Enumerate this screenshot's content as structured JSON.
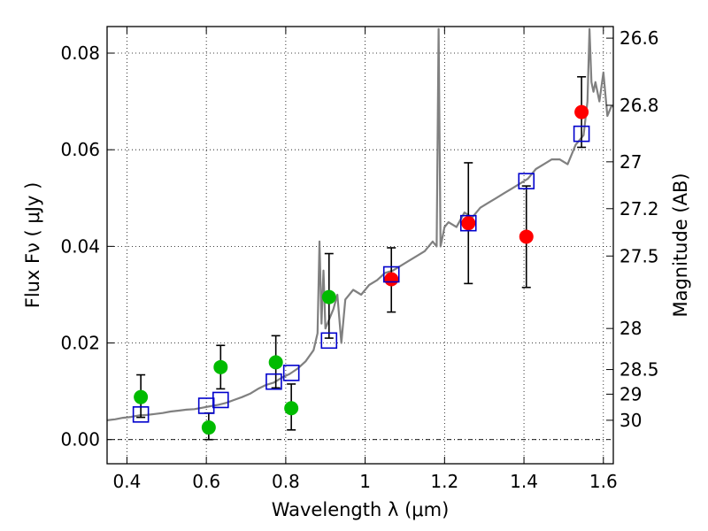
{
  "chart_data": {
    "type": "scatter",
    "xlabel": "Wavelength  λ (μm)",
    "ylabel": "Flux  Fν  ( μJy )",
    "y2label": "Magnitude (AB)",
    "xlim": [
      0.35,
      1.625
    ],
    "ylim": [
      -0.005,
      0.0855
    ],
    "grid": true,
    "x_ticks": [
      {
        "value": 0.4,
        "label": "0.4"
      },
      {
        "value": 0.6,
        "label": "0.6"
      },
      {
        "value": 0.8,
        "label": "0.8"
      },
      {
        "value": 1.0,
        "label": "1"
      },
      {
        "value": 1.2,
        "label": "1.2"
      },
      {
        "value": 1.4,
        "label": "1.4"
      },
      {
        "value": 1.6,
        "label": "1.6"
      }
    ],
    "y_ticks": [
      {
        "value": 0.0,
        "label": "0.00"
      },
      {
        "value": 0.02,
        "label": "0.02"
      },
      {
        "value": 0.04,
        "label": "0.04"
      },
      {
        "value": 0.06,
        "label": "0.06"
      },
      {
        "value": 0.08,
        "label": "0.08"
      }
    ],
    "y2_ticks": [
      {
        "flux": 0.0831,
        "label": "26.6"
      },
      {
        "flux": 0.0692,
        "label": "26.8"
      },
      {
        "flux": 0.0575,
        "label": "27"
      },
      {
        "flux": 0.0478,
        "label": "27.2"
      },
      {
        "flux": 0.038,
        "label": "27.5"
      },
      {
        "flux": 0.023,
        "label": "28"
      },
      {
        "flux": 0.0145,
        "label": "28.5"
      },
      {
        "flux": 0.0094,
        "label": "29"
      },
      {
        "flux": 0.004,
        "label": "30"
      }
    ],
    "colors": {
      "model_line": "#808080",
      "green_points": "#00bb00",
      "red_points": "#ff0000",
      "model_boxes": "#0000cc",
      "error_bars": "#000000"
    },
    "model_spectrum": {
      "x": [
        0.35,
        0.37,
        0.39,
        0.41,
        0.43,
        0.45,
        0.47,
        0.49,
        0.51,
        0.53,
        0.55,
        0.57,
        0.59,
        0.61,
        0.63,
        0.65,
        0.67,
        0.69,
        0.71,
        0.73,
        0.75,
        0.77,
        0.79,
        0.81,
        0.83,
        0.85,
        0.87,
        0.88,
        0.885,
        0.89,
        0.895,
        0.9,
        0.91,
        0.92,
        0.93,
        0.94,
        0.95,
        0.97,
        0.99,
        1.01,
        1.03,
        1.05,
        1.07,
        1.09,
        1.11,
        1.13,
        1.15,
        1.17,
        1.18,
        1.185,
        1.19,
        1.195,
        1.2,
        1.21,
        1.23,
        1.25,
        1.27,
        1.29,
        1.31,
        1.33,
        1.35,
        1.37,
        1.39,
        1.41,
        1.43,
        1.45,
        1.47,
        1.49,
        1.51,
        1.53,
        1.55,
        1.56,
        1.565,
        1.57,
        1.575,
        1.58,
        1.59,
        1.6,
        1.61,
        1.62,
        1.625
      ],
      "y": [
        0.004,
        0.0042,
        0.0045,
        0.0047,
        0.005,
        0.0051,
        0.0053,
        0.0055,
        0.0058,
        0.006,
        0.0062,
        0.0063,
        0.0066,
        0.0069,
        0.0072,
        0.0076,
        0.0082,
        0.0088,
        0.0095,
        0.0105,
        0.0113,
        0.0118,
        0.0128,
        0.0136,
        0.0147,
        0.0162,
        0.0185,
        0.022,
        0.041,
        0.024,
        0.035,
        0.023,
        0.025,
        0.027,
        0.03,
        0.02,
        0.029,
        0.031,
        0.03,
        0.032,
        0.033,
        0.0345,
        0.035,
        0.036,
        0.037,
        0.038,
        0.039,
        0.041,
        0.04,
        0.085,
        0.04,
        0.042,
        0.044,
        0.045,
        0.044,
        0.047,
        0.046,
        0.048,
        0.049,
        0.05,
        0.051,
        0.052,
        0.053,
        0.054,
        0.056,
        0.057,
        0.058,
        0.058,
        0.057,
        0.061,
        0.063,
        0.07,
        0.085,
        0.074,
        0.072,
        0.074,
        0.07,
        0.076,
        0.067,
        0.069,
        0.069
      ]
    },
    "observed_points": [
      {
        "x": 0.435,
        "y": 0.0088,
        "err_lo": 0.0042,
        "err_hi": 0.0046,
        "color": "green"
      },
      {
        "x": 0.606,
        "y": 0.0025,
        "err_lo": 0.0025,
        "err_hi": 0.003,
        "color": "green"
      },
      {
        "x": 0.636,
        "y": 0.015,
        "err_lo": 0.0045,
        "err_hi": 0.0045,
        "color": "green"
      },
      {
        "x": 0.775,
        "y": 0.016,
        "err_lo": 0.0053,
        "err_hi": 0.0055,
        "color": "green"
      },
      {
        "x": 0.814,
        "y": 0.0065,
        "err_lo": 0.0045,
        "err_hi": 0.005,
        "color": "green"
      },
      {
        "x": 0.909,
        "y": 0.0295,
        "err_lo": 0.0085,
        "err_hi": 0.009,
        "color": "green"
      },
      {
        "x": 1.066,
        "y": 0.0332,
        "err_lo": 0.0068,
        "err_hi": 0.0065,
        "color": "red"
      },
      {
        "x": 1.26,
        "y": 0.0448,
        "err_lo": 0.0125,
        "err_hi": 0.0125,
        "color": "red"
      },
      {
        "x": 1.406,
        "y": 0.042,
        "err_lo": 0.0105,
        "err_hi": 0.0105,
        "color": "red"
      },
      {
        "x": 1.545,
        "y": 0.0678,
        "err_lo": 0.0073,
        "err_hi": 0.0073,
        "color": "red"
      }
    ],
    "model_photometry": [
      {
        "x": 0.435,
        "y": 0.0052
      },
      {
        "x": 0.6,
        "y": 0.007
      },
      {
        "x": 0.636,
        "y": 0.0082
      },
      {
        "x": 0.77,
        "y": 0.012
      },
      {
        "x": 0.814,
        "y": 0.0138
      },
      {
        "x": 0.909,
        "y": 0.0205
      },
      {
        "x": 1.066,
        "y": 0.0342
      },
      {
        "x": 1.26,
        "y": 0.0448
      },
      {
        "x": 1.406,
        "y": 0.0535
      },
      {
        "x": 1.545,
        "y": 0.0633
      }
    ]
  }
}
